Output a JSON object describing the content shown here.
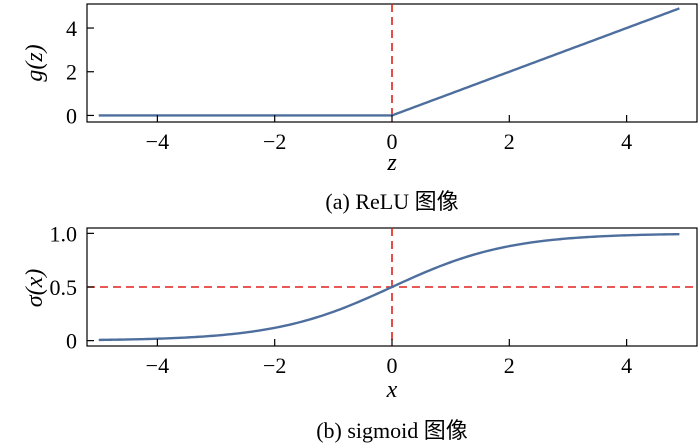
{
  "chart_data": [
    {
      "type": "line",
      "caption": "(a) ReLU 图像",
      "xlabel": "z",
      "ylabel": "g(z)",
      "xlim": [
        -5.2,
        5.2
      ],
      "ylim": [
        -0.3,
        5.1
      ],
      "xticks": [
        -4,
        -2,
        0,
        2,
        4
      ],
      "xtick_labels": [
        "−4",
        "−2",
        "0",
        "2",
        "4"
      ],
      "yticks": [
        0,
        2,
        4
      ],
      "ytick_labels": [
        "0",
        "2",
        "4"
      ],
      "function": "relu",
      "x": [
        -5,
        -4,
        -3,
        -2,
        -1,
        0,
        1,
        2,
        3,
        4,
        4.9
      ],
      "y": [
        0,
        0,
        0,
        0,
        0,
        0,
        1,
        2,
        3,
        4,
        4.9
      ],
      "vlines": [
        0
      ],
      "hlines": [],
      "grid": false,
      "colors": {
        "curve": "#4e6f9e",
        "reference": "#e0201b"
      }
    },
    {
      "type": "line",
      "caption": "(b) sigmoid 图像",
      "xlabel": "x",
      "ylabel": "σ(x)",
      "xlim": [
        -5.2,
        5.2
      ],
      "ylim": [
        -0.05,
        1.05
      ],
      "xticks": [
        -4,
        -2,
        0,
        2,
        4
      ],
      "xtick_labels": [
        "−4",
        "−2",
        "0",
        "2",
        "4"
      ],
      "yticks": [
        0,
        0.5,
        1.0
      ],
      "ytick_labels": [
        "0",
        "0.5",
        "1.0"
      ],
      "function": "sigmoid",
      "x": [
        -5,
        -4,
        -3,
        -2,
        -1,
        0,
        1,
        2,
        3,
        4,
        4.9
      ],
      "y": [
        0.007,
        0.018,
        0.047,
        0.119,
        0.269,
        0.5,
        0.731,
        0.881,
        0.953,
        0.982,
        0.993
      ],
      "vlines": [
        0
      ],
      "hlines": [
        0.5
      ],
      "grid": false,
      "colors": {
        "curve": "#4e6f9e",
        "reference": "#e0201b"
      }
    }
  ]
}
